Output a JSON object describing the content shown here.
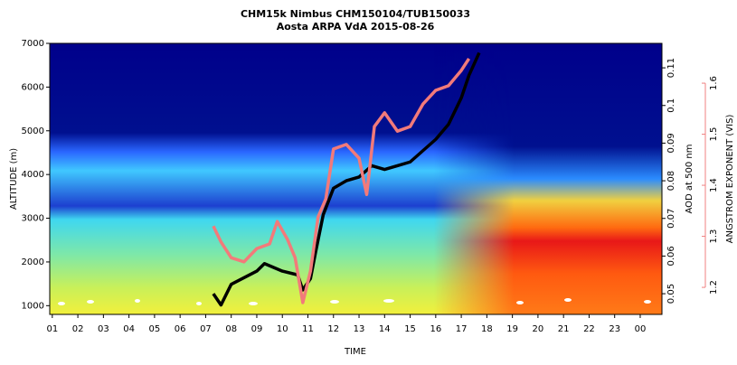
{
  "chart_data": {
    "type": "line",
    "title": "CHM15k Nimbus CHM150104/TUB150033",
    "subtitle": "Aosta ARPA VdA 2015-08-26",
    "x_label": "TIME",
    "y_label": "ALTITUDE (m)",
    "y2_label": "AOD at 500 nm",
    "y3_label": "ANGSTROM EXPONENT (VIS)",
    "xlim": [
      0.9,
      24.85
    ],
    "xticks": [
      {
        "value": 1,
        "label": "01"
      },
      {
        "value": 2,
        "label": "02"
      },
      {
        "value": 3,
        "label": "03"
      },
      {
        "value": 4,
        "label": "04"
      },
      {
        "value": 5,
        "label": "05"
      },
      {
        "value": 6,
        "label": "06"
      },
      {
        "value": 7,
        "label": "07"
      },
      {
        "value": 8,
        "label": "08"
      },
      {
        "value": 9,
        "label": "09"
      },
      {
        "value": 10,
        "label": "10"
      },
      {
        "value": 11,
        "label": "11"
      },
      {
        "value": 12,
        "label": "12"
      },
      {
        "value": 13,
        "label": "13"
      },
      {
        "value": 14,
        "label": "14"
      },
      {
        "value": 15,
        "label": "15"
      },
      {
        "value": 16,
        "label": "16"
      },
      {
        "value": 17,
        "label": "17"
      },
      {
        "value": 18,
        "label": "18"
      },
      {
        "value": 19,
        "label": "19"
      },
      {
        "value": 20,
        "label": "20"
      },
      {
        "value": 21,
        "label": "21"
      },
      {
        "value": 22,
        "label": "22"
      },
      {
        "value": 23,
        "label": "23"
      },
      {
        "value": 24,
        "label": "00"
      }
    ],
    "ylim": [
      800,
      7000
    ],
    "yticks": [
      1000,
      2000,
      3000,
      4000,
      5000,
      6000,
      7000
    ],
    "y2lim": [
      0.0445,
      0.1165
    ],
    "y2ticks": [
      0.05,
      0.06,
      0.07,
      0.08,
      0.09,
      0.1,
      0.11
    ],
    "y3lim": [
      1.147,
      1.678
    ],
    "y3ticks": [
      1.2,
      1.3,
      1.4,
      1.5,
      1.6
    ],
    "y3color": "#f08080",
    "series": [
      {
        "name": "AOD",
        "color": "#000000",
        "axis": "y2",
        "x": [
          7.3,
          7.6,
          8,
          9,
          9.3,
          10,
          10.6,
          10.8,
          11.1,
          11.3,
          11.6,
          12,
          12.5,
          13,
          13.5,
          14,
          14.5,
          15,
          15.5,
          16,
          16.5,
          17,
          17.3,
          17.7
        ],
        "values": [
          0.05,
          0.047,
          0.0525,
          0.056,
          0.058,
          0.056,
          0.055,
          0.051,
          0.054,
          0.061,
          0.071,
          0.078,
          0.08,
          0.081,
          0.084,
          0.083,
          0.084,
          0.085,
          0.088,
          0.091,
          0.095,
          0.102,
          0.108,
          0.114
        ]
      },
      {
        "name": "Angstrom",
        "color": "#f27a7a",
        "axis": "y3",
        "x": [
          7.3,
          7.6,
          8,
          8.5,
          9,
          9.5,
          9.8,
          10.2,
          10.5,
          10.8,
          11.1,
          11.4,
          11.7,
          12,
          12.5,
          13,
          13.3,
          13.6,
          14,
          14.5,
          15,
          15.5,
          16,
          16.5,
          17,
          17.3
        ],
        "values": [
          1.32,
          1.289,
          1.258,
          1.25,
          1.276,
          1.285,
          1.329,
          1.294,
          1.258,
          1.17,
          1.232,
          1.338,
          1.373,
          1.471,
          1.48,
          1.453,
          1.382,
          1.515,
          1.542,
          1.506,
          1.515,
          1.559,
          1.586,
          1.595,
          1.625,
          1.648
        ]
      }
    ]
  }
}
